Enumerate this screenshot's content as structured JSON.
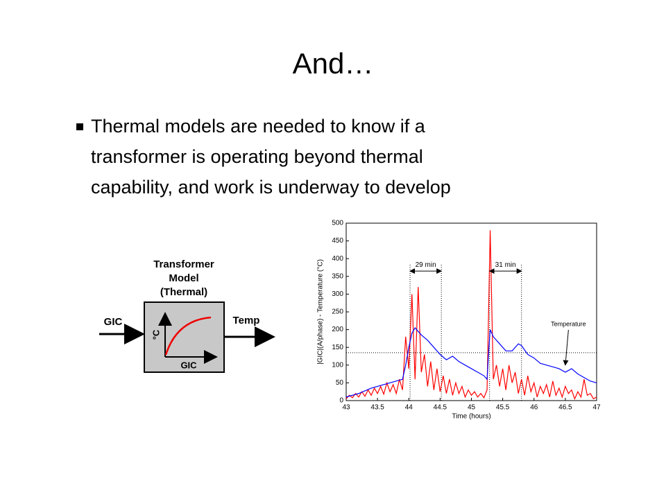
{
  "title": "And…",
  "bullet": {
    "lines": [
      "Thermal models are needed to know if a",
      "transformer is operating beyond thermal",
      "capability, and work is underway to develop"
    ]
  },
  "diagram": {
    "box_title": [
      "Transformer",
      "Model",
      "(Thermal)"
    ],
    "input": "GIC",
    "output": "Temp",
    "inner_y_label": "°C",
    "inner_x_label": "GIC"
  },
  "chart_data": {
    "type": "line",
    "xlabel": "Time (hours)",
    "ylabel": "|GIC|(A/phase) - Temperature (°C)",
    "xlim": [
      43,
      47
    ],
    "xticks": [
      43,
      43.5,
      44,
      44.5,
      45,
      45.5,
      46,
      46.5,
      47
    ],
    "ylim": [
      0,
      500
    ],
    "yticks": [
      0,
      50,
      100,
      150,
      200,
      250,
      300,
      350,
      400,
      450,
      500
    ],
    "reference_lines": {
      "y": [
        135
      ],
      "x": [
        44.02,
        44.52,
        45.29,
        45.8
      ]
    },
    "annotations": [
      {
        "text": "29 min",
        "from": 44.02,
        "to": 44.52,
        "y": 365
      },
      {
        "text": "31 min",
        "from": 45.29,
        "to": 45.8,
        "y": 365
      },
      {
        "text": "Temperature",
        "x": 46.55,
        "y": 215,
        "arrow_x": 46.5,
        "arrow_y": 100
      }
    ],
    "series": [
      {
        "color": "#ff0000",
        "x": [
          43,
          43.05,
          43.1,
          43.15,
          43.2,
          43.25,
          43.3,
          43.35,
          43.4,
          43.45,
          43.5,
          43.55,
          43.6,
          43.65,
          43.7,
          43.75,
          43.8,
          43.85,
          43.9,
          43.95,
          44,
          44.05,
          44.1,
          44.15,
          44.2,
          44.25,
          44.3,
          44.35,
          44.4,
          44.45,
          44.5,
          44.55,
          44.6,
          44.65,
          44.7,
          44.75,
          44.8,
          44.85,
          44.9,
          44.95,
          45,
          45.05,
          45.1,
          45.15,
          45.2,
          45.25,
          45.3,
          45.35,
          45.4,
          45.45,
          45.5,
          45.55,
          45.6,
          45.65,
          45.7,
          45.75,
          45.8,
          45.85,
          45.9,
          45.95,
          46,
          46.05,
          46.1,
          46.15,
          46.2,
          46.25,
          46.3,
          46.35,
          46.4,
          46.45,
          46.5,
          46.55,
          46.6,
          46.65,
          46.7,
          46.75,
          46.8,
          46.85,
          46.9,
          46.95,
          47
        ],
        "values": [
          5,
          15,
          8,
          20,
          10,
          25,
          12,
          30,
          15,
          35,
          20,
          40,
          18,
          50,
          25,
          45,
          20,
          60,
          30,
          180,
          90,
          300,
          60,
          320,
          80,
          130,
          40,
          110,
          30,
          90,
          25,
          70,
          20,
          60,
          15,
          50,
          20,
          40,
          10,
          30,
          15,
          25,
          10,
          20,
          8,
          30,
          480,
          60,
          100,
          40,
          90,
          30,
          100,
          50,
          80,
          20,
          60,
          15,
          70,
          25,
          50,
          10,
          40,
          20,
          45,
          10,
          55,
          15,
          35,
          10,
          40,
          20,
          30,
          5,
          25,
          10,
          60,
          15,
          20,
          5,
          10
        ]
      },
      {
        "color": "#0000ff",
        "x": [
          43,
          43.2,
          43.4,
          43.6,
          43.8,
          43.9,
          43.95,
          44,
          44.05,
          44.1,
          44.15,
          44.2,
          44.3,
          44.4,
          44.5,
          44.6,
          44.7,
          44.8,
          44.9,
          45,
          45.1,
          45.2,
          45.25,
          45.28,
          45.3,
          45.35,
          45.45,
          45.55,
          45.65,
          45.75,
          45.8,
          45.9,
          46,
          46.1,
          46.2,
          46.3,
          46.4,
          46.5,
          46.6,
          46.7,
          46.8,
          46.9,
          47
        ],
        "values": [
          10,
          20,
          35,
          45,
          55,
          60,
          100,
          150,
          190,
          205,
          195,
          185,
          170,
          150,
          130,
          115,
          125,
          110,
          100,
          90,
          80,
          70,
          60,
          150,
          200,
          180,
          160,
          140,
          140,
          160,
          155,
          130,
          120,
          105,
          100,
          95,
          90,
          80,
          90,
          75,
          65,
          55,
          50
        ]
      }
    ]
  }
}
